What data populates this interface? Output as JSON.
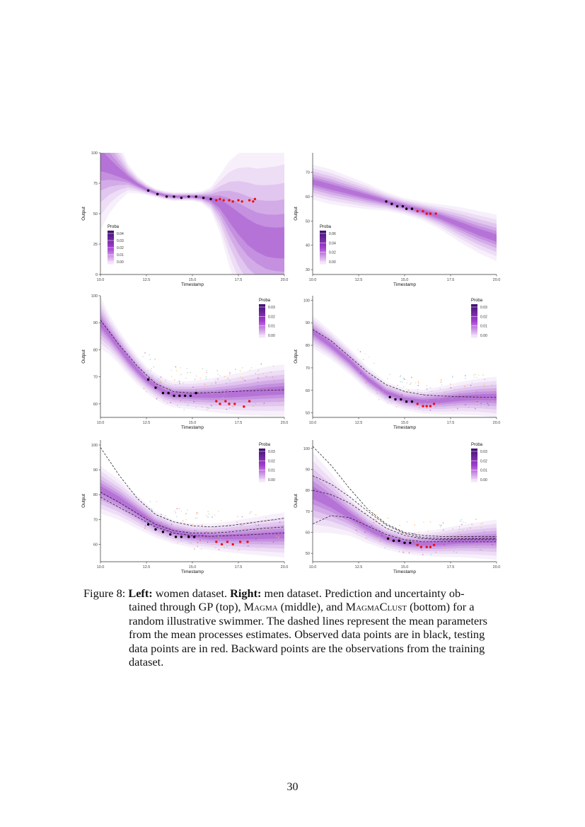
{
  "figure": {
    "colors": {
      "band_dark": "#5a189a",
      "band_light": "#f4e8fb",
      "observed": "#000000",
      "testing": "#ee1111",
      "axis": "#333333"
    },
    "legend_title": "Proba",
    "x_axis_label": "Timestamp",
    "y_axis_label": "Output"
  },
  "chart_data": [
    {
      "type": "area",
      "panel": "left-gp",
      "row": "GP",
      "xticks": [
        "10.0",
        "12.5",
        "15.0",
        "17.5",
        "20.0"
      ],
      "xlim": [
        10,
        20
      ],
      "yticks": [
        "0",
        "25",
        "50",
        "75",
        "100"
      ],
      "ylim": [
        0,
        100
      ],
      "legend_ticks": [
        "0.04",
        "0.03",
        "0.02",
        "0.01",
        "0.00"
      ],
      "legend_position": "bottom-left",
      "mean_x": [
        10,
        10.5,
        11,
        11.5,
        12,
        12.5,
        13,
        13.5,
        14,
        14.5,
        15,
        15.5,
        16,
        16.5,
        17,
        17.5,
        18,
        18.5,
        19,
        19.5,
        20
      ],
      "mean_y": [
        94,
        89,
        84,
        79,
        74,
        70,
        67,
        65,
        64,
        64,
        64,
        63.5,
        62,
        58,
        50,
        42,
        35,
        30,
        27,
        26,
        26
      ],
      "band_sd": [
        24,
        16,
        10,
        5,
        3,
        2,
        1.5,
        1.5,
        1.5,
        1.5,
        1.5,
        2,
        4,
        10,
        18,
        24,
        28,
        30,
        32,
        33,
        34
      ],
      "observed": [
        [
          12.6,
          69
        ],
        [
          13.1,
          66
        ],
        [
          13.6,
          64
        ],
        [
          14,
          64
        ],
        [
          14.4,
          63
        ],
        [
          14.8,
          64
        ],
        [
          15.2,
          64
        ],
        [
          15.6,
          63
        ],
        [
          16,
          62
        ]
      ],
      "testing": [
        [
          16.3,
          61
        ],
        [
          16.5,
          62
        ],
        [
          16.7,
          61
        ],
        [
          17,
          61
        ],
        [
          17.2,
          60
        ],
        [
          17.5,
          61
        ],
        [
          17.7,
          60
        ],
        [
          18.1,
          61
        ],
        [
          18.3,
          60
        ],
        [
          18.4,
          62
        ]
      ],
      "dashed": []
    },
    {
      "type": "area",
      "panel": "right-gp",
      "row": "GP",
      "xticks": [
        "10.0",
        "12.5",
        "15.0",
        "17.5",
        "20.0"
      ],
      "xlim": [
        10,
        20
      ],
      "yticks": [
        "30",
        "40",
        "50",
        "60",
        "70"
      ],
      "ylim": [
        28,
        78
      ],
      "legend_ticks": [
        "0.06",
        "0.04",
        "0.02",
        "0.00"
      ],
      "legend_position": "bottom-left",
      "mean_x": [
        10,
        11,
        12,
        13,
        14,
        15,
        16,
        17,
        18,
        19,
        20
      ],
      "mean_y": [
        66,
        64,
        62,
        60,
        58,
        56,
        54,
        51.5,
        48.5,
        45.5,
        43
      ],
      "band_sd": [
        3,
        3,
        2.6,
        2.2,
        1.6,
        1.4,
        1.6,
        2.2,
        3,
        3.6,
        4
      ],
      "observed": [
        [
          14,
          58
        ],
        [
          14.3,
          57
        ],
        [
          14.6,
          56
        ],
        [
          14.9,
          56
        ],
        [
          15.1,
          55
        ],
        [
          15.4,
          55
        ]
      ],
      "testing": [
        [
          15.7,
          54
        ],
        [
          16,
          54
        ],
        [
          16.2,
          53
        ],
        [
          16.4,
          53
        ],
        [
          16.7,
          53
        ]
      ],
      "dashed": []
    },
    {
      "type": "area",
      "panel": "left-magma",
      "row": "Magma",
      "xticks": [
        "10.0",
        "12.5",
        "15.0",
        "17.5",
        "20.0"
      ],
      "xlim": [
        10,
        20
      ],
      "yticks": [
        "60",
        "70",
        "80",
        "90",
        "100"
      ],
      "ylim": [
        55,
        100
      ],
      "legend_ticks": [
        "0.03",
        "0.02",
        "0.01",
        "0.00"
      ],
      "legend_position": "top-right",
      "mean_x": [
        10,
        10.5,
        11,
        11.5,
        12,
        12.5,
        13,
        13.5,
        14,
        15,
        16,
        17,
        18,
        19,
        20
      ],
      "mean_y": [
        90,
        85.5,
        81,
        76.5,
        72.5,
        69,
        66.5,
        64.5,
        63.5,
        63.2,
        63.2,
        63.5,
        64,
        64.6,
        65
      ],
      "band_sd": [
        4,
        3,
        2.6,
        2.4,
        2.2,
        2,
        2,
        2,
        2,
        2.2,
        2.6,
        3,
        3.4,
        3.8,
        4
      ],
      "observed": [
        [
          12.6,
          69
        ],
        [
          13,
          66
        ],
        [
          13.4,
          64
        ],
        [
          13.7,
          64
        ],
        [
          14,
          63
        ],
        [
          14.3,
          63
        ],
        [
          14.6,
          63
        ],
        [
          14.9,
          63
        ],
        [
          15.2,
          64
        ]
      ],
      "testing": [
        [
          16.3,
          61
        ],
        [
          16.5,
          60
        ],
        [
          16.8,
          61
        ],
        [
          17,
          60
        ],
        [
          17.3,
          60
        ],
        [
          17.8,
          59
        ],
        [
          18.1,
          61
        ]
      ],
      "dashed": [
        [
          [
            10,
            91
          ],
          [
            11,
            82
          ],
          [
            12,
            74
          ],
          [
            13,
            67.5
          ],
          [
            14,
            64.5
          ],
          [
            15,
            64
          ],
          [
            16,
            64.2
          ],
          [
            17,
            64.5
          ],
          [
            18,
            64.8
          ],
          [
            19,
            65
          ],
          [
            20,
            65.2
          ]
        ]
      ]
    },
    {
      "type": "area",
      "panel": "right-magma",
      "row": "Magma",
      "xticks": [
        "10.0",
        "12.5",
        "15.0",
        "17.5",
        "20.0"
      ],
      "xlim": [
        10,
        20
      ],
      "yticks": [
        "50",
        "60",
        "70",
        "80",
        "90",
        "100"
      ],
      "ylim": [
        48,
        102
      ],
      "legend_ticks": [
        "0.03",
        "0.02",
        "0.01",
        "0.00"
      ],
      "legend_position": "top-right",
      "mean_x": [
        10,
        11,
        12,
        13,
        14,
        15,
        16,
        17,
        18,
        19,
        20
      ],
      "mean_y": [
        86,
        80,
        73,
        65,
        59,
        56,
        55,
        55.5,
        56.5,
        57,
        57
      ],
      "band_sd": [
        3,
        2.6,
        2.4,
        2.2,
        2,
        2,
        2.2,
        2.6,
        3,
        3.4,
        3.8
      ],
      "observed": [
        [
          14.2,
          57
        ],
        [
          14.5,
          56
        ],
        [
          14.8,
          56
        ],
        [
          15.1,
          55
        ],
        [
          15.4,
          55
        ]
      ],
      "testing": [
        [
          15.7,
          54
        ],
        [
          16,
          53
        ],
        [
          16.2,
          53
        ],
        [
          16.4,
          53
        ],
        [
          16.6,
          54
        ]
      ],
      "dashed": [
        [
          [
            10,
            87
          ],
          [
            11,
            82
          ],
          [
            12,
            75
          ],
          [
            13,
            68
          ],
          [
            14,
            62.5
          ],
          [
            15,
            59.5
          ],
          [
            16,
            58
          ],
          [
            17,
            57.5
          ],
          [
            18,
            57.2
          ],
          [
            19,
            57
          ],
          [
            20,
            57
          ]
        ]
      ]
    },
    {
      "type": "area",
      "panel": "left-magmaclust",
      "row": "MagmaClust",
      "xticks": [
        "10.0",
        "12.5",
        "15.0",
        "17.5",
        "20.0"
      ],
      "xlim": [
        10,
        20
      ],
      "yticks": [
        "60",
        "70",
        "80",
        "90",
        "100"
      ],
      "ylim": [
        53,
        102
      ],
      "legend_ticks": [
        "0.03",
        "0.02",
        "0.01",
        "0.00"
      ],
      "legend_position": "top-right",
      "mean_x": [
        10,
        11,
        12,
        13,
        14,
        15,
        16,
        17,
        18,
        19,
        20
      ],
      "mean_y": [
        82,
        78,
        73,
        68,
        65,
        63.5,
        63,
        63,
        63.2,
        63.5,
        63.8
      ],
      "band_sd": [
        4,
        3.4,
        2.8,
        2.2,
        2,
        2,
        2.2,
        2.6,
        3,
        3.4,
        3.8
      ],
      "observed": [
        [
          12.6,
          68
        ],
        [
          13,
          66
        ],
        [
          13.4,
          65
        ],
        [
          13.8,
          64
        ],
        [
          14.1,
          63
        ],
        [
          14.4,
          63
        ],
        [
          14.8,
          63
        ],
        [
          15.1,
          63
        ]
      ],
      "testing": [
        [
          16.3,
          61
        ],
        [
          16.6,
          60
        ],
        [
          16.9,
          61
        ],
        [
          17.2,
          60
        ],
        [
          17.6,
          61
        ],
        [
          18,
          61
        ]
      ],
      "dashed": [
        [
          [
            10,
            99
          ],
          [
            11,
            88
          ],
          [
            12,
            78.5
          ],
          [
            13,
            72
          ],
          [
            14,
            69
          ],
          [
            15,
            67.5
          ],
          [
            16,
            67
          ],
          [
            17,
            67.5
          ],
          [
            18,
            68.5
          ],
          [
            19,
            69.5
          ],
          [
            20,
            70.5
          ]
        ],
        [
          [
            10,
            81
          ],
          [
            11,
            77
          ],
          [
            12,
            72.5
          ],
          [
            13,
            68
          ],
          [
            14,
            65.5
          ],
          [
            15,
            64.5
          ],
          [
            16,
            64.5
          ],
          [
            17,
            65
          ],
          [
            18,
            65.8
          ],
          [
            19,
            66.5
          ],
          [
            20,
            67
          ]
        ],
        [
          [
            10,
            79
          ],
          [
            11,
            75
          ],
          [
            12,
            71
          ],
          [
            13,
            67
          ],
          [
            14,
            64.5
          ],
          [
            15,
            63.5
          ],
          [
            16,
            63.2
          ],
          [
            17,
            63.5
          ],
          [
            18,
            63.8
          ],
          [
            19,
            64.2
          ],
          [
            20,
            64.5
          ]
        ]
      ]
    },
    {
      "type": "area",
      "panel": "right-magmaclust",
      "row": "MagmaClust",
      "xticks": [
        "10.0",
        "12.5",
        "15.0",
        "17.5",
        "20.0"
      ],
      "xlim": [
        10,
        20
      ],
      "yticks": [
        "50",
        "60",
        "70",
        "80",
        "90",
        "100"
      ],
      "ylim": [
        46,
        104
      ],
      "legend_ticks": [
        "0.03",
        "0.02",
        "0.01",
        "0.00"
      ],
      "legend_position": "top-right",
      "mean_x": [
        10,
        11,
        12,
        13,
        14,
        15,
        16,
        17,
        18,
        19,
        20
      ],
      "mean_y": [
        79,
        74,
        68,
        62,
        57.5,
        55,
        54.5,
        55,
        55.8,
        56.2,
        56.5
      ],
      "band_sd": [
        8,
        6,
        4,
        3,
        2.4,
        2.2,
        2.4,
        2.8,
        3.2,
        3.6,
        4
      ],
      "observed": [
        [
          14.1,
          57
        ],
        [
          14.4,
          56
        ],
        [
          14.7,
          56
        ],
        [
          15,
          55
        ],
        [
          15.3,
          55
        ]
      ],
      "testing": [
        [
          15.7,
          54
        ],
        [
          15.9,
          53
        ],
        [
          16.2,
          53
        ],
        [
          16.4,
          53
        ],
        [
          16.6,
          54
        ]
      ],
      "dashed": [
        [
          [
            10,
            101
          ],
          [
            11,
            92
          ],
          [
            12,
            81
          ],
          [
            13,
            71
          ],
          [
            14,
            64
          ],
          [
            15,
            60
          ],
          [
            16,
            58.5
          ],
          [
            17,
            58
          ],
          [
            18,
            58
          ],
          [
            19,
            58
          ],
          [
            20,
            58
          ]
        ],
        [
          [
            10,
            87
          ],
          [
            11,
            83
          ],
          [
            12,
            77
          ],
          [
            13,
            70
          ],
          [
            14,
            63.5
          ],
          [
            15,
            59.5
          ],
          [
            16,
            57.5
          ],
          [
            17,
            57
          ],
          [
            18,
            57
          ],
          [
            19,
            57
          ],
          [
            20,
            57
          ]
        ],
        [
          [
            10,
            80
          ],
          [
            11,
            78
          ],
          [
            12,
            74
          ],
          [
            13,
            68
          ],
          [
            14,
            62
          ],
          [
            15,
            58.5
          ],
          [
            16,
            57
          ],
          [
            17,
            56.5
          ],
          [
            18,
            56.5
          ],
          [
            19,
            56.5
          ],
          [
            20,
            56.5
          ]
        ],
        [
          [
            10,
            64
          ],
          [
            11,
            68
          ],
          [
            12,
            67
          ],
          [
            13,
            63
          ],
          [
            14,
            59
          ],
          [
            15,
            56.5
          ],
          [
            16,
            55.5
          ],
          [
            17,
            55.5
          ],
          [
            18,
            55.5
          ],
          [
            19,
            55.5
          ],
          [
            20,
            55.5
          ]
        ]
      ]
    }
  ],
  "caption": {
    "label": "Figure 8:",
    "left_label": "Left:",
    "left_text": "women dataset.",
    "right_label": "Right:",
    "line1_rest": "men dataset. Prediction and uncertainty ob-",
    "line2_a": "tained through GP (top), ",
    "magma": "Magma",
    "line2_b": " (middle), and ",
    "magmaclust": "MagmaClust",
    "line2_c": " (bottom) for a",
    "line3": "random illustrative swimmer. The dashed lines represent the mean parameters",
    "line4": "from the mean processes estimates. Observed data points are in black, testing",
    "line5": "data points are in red. Backward points are the observations from the training",
    "line6": "dataset."
  },
  "page": {
    "number": "30"
  }
}
